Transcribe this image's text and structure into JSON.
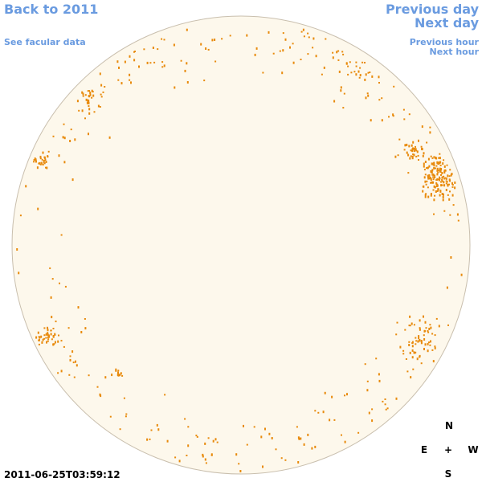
{
  "nav": {
    "back": "Back to 2011",
    "facular": "See facular data",
    "previous_day": "Previous day",
    "next_day": "Next day",
    "previous_hour": "Previous hour",
    "next_hour": "Next hour"
  },
  "timestamp": "2011-06-25T03:59:12",
  "compass": {
    "north": "N",
    "east": "E",
    "center": "+",
    "west": "W",
    "south": "S"
  }
}
